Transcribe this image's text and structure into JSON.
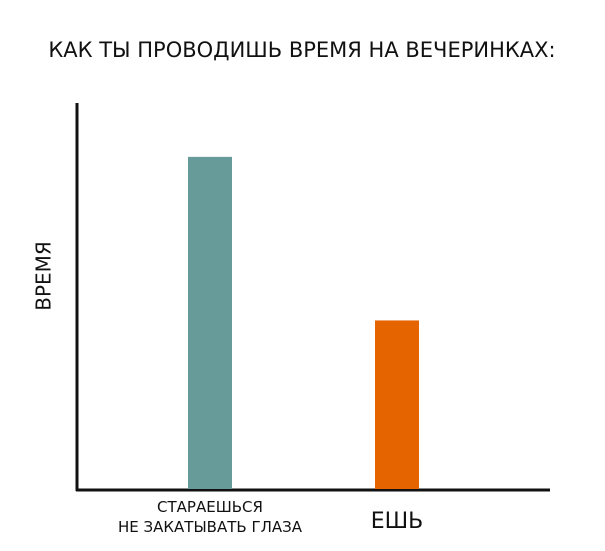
{
  "chart_data": {
    "type": "bar",
    "title": "КАК ТЫ ПРОВОДИШЬ ВРЕМЯ НА ВЕЧЕРИНКАХ:",
    "y_label": "ВРЕМЯ",
    "categories": [
      "СТАРАЕШЬСЯ\nНЕ ЗАКАТЫВАТЬ ГЛАЗА",
      "ЕШЬ"
    ],
    "values": [
      333,
      169
    ],
    "colors": [
      "#679b99",
      "#e56400"
    ],
    "ylim": [
      0,
      387
    ]
  }
}
